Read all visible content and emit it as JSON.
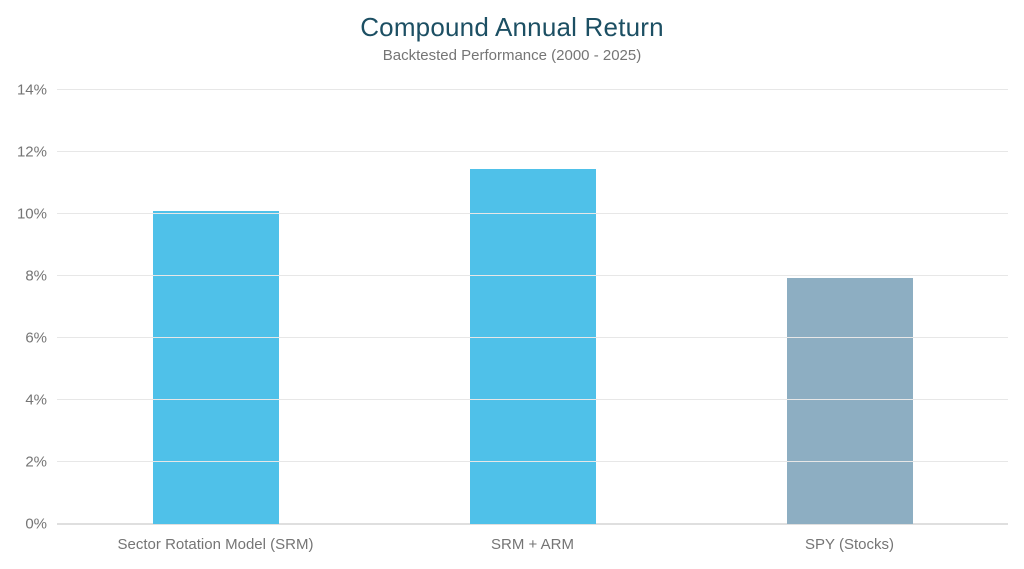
{
  "chart_data": {
    "type": "bar",
    "title": "Compound Annual Return",
    "subtitle": "Backtested Performance (2000 - 2025)",
    "categories": [
      "Sector Rotation Model (SRM)",
      "SRM + ARM",
      "SPY (Stocks)"
    ],
    "values": [
      10.1,
      11.45,
      7.95
    ],
    "bar_colors": [
      "#4FC1E9",
      "#4FC1E9",
      "#8DAEC2"
    ],
    "xlabel": "",
    "ylabel": "",
    "ylim": [
      0,
      14
    ],
    "yticks": [
      0,
      2,
      4,
      6,
      8,
      10,
      12,
      14
    ],
    "ytick_labels": [
      "0%",
      "2%",
      "4%",
      "6%",
      "8%",
      "10%",
      "12%",
      "14%"
    ],
    "grid": true,
    "legend": false
  },
  "theme": {
    "background": "#FFFFFF",
    "title_color": "#1C4F63",
    "subtitle_color": "#757575",
    "axis_label_color": "#757575",
    "gridline_color": "#E7E7E7",
    "baseline_color": "#DFDFDF",
    "bar_blue": "#4FC1E9",
    "bar_gray_blue": "#8DAEC2"
  }
}
